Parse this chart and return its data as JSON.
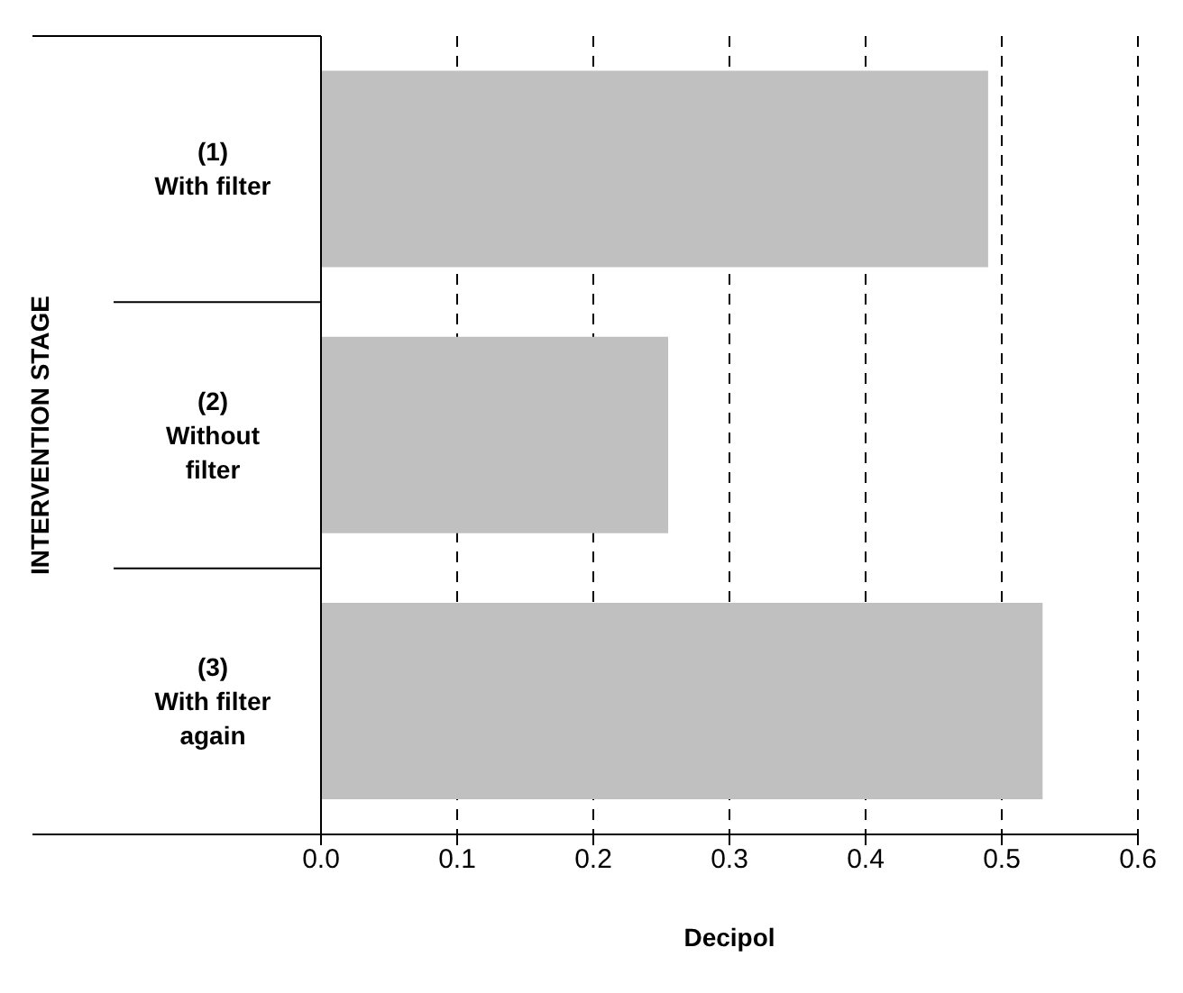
{
  "chart_data": {
    "type": "bar",
    "orientation": "horizontal",
    "categories": [
      "(1) With filter",
      "(2) Without filter",
      "(3) With filter again"
    ],
    "values": [
      0.49,
      0.255,
      0.53
    ],
    "color": "#c0c0c0",
    "xlabel": "Decipol",
    "ylabel": "INTERVENTION STAGE",
    "xlim": [
      0,
      0.6
    ],
    "xticks": [
      {
        "value": 0,
        "label": "0.0"
      },
      0.1,
      0.2,
      0.3,
      0.4,
      0.5,
      0.6
    ],
    "grid": "x"
  }
}
